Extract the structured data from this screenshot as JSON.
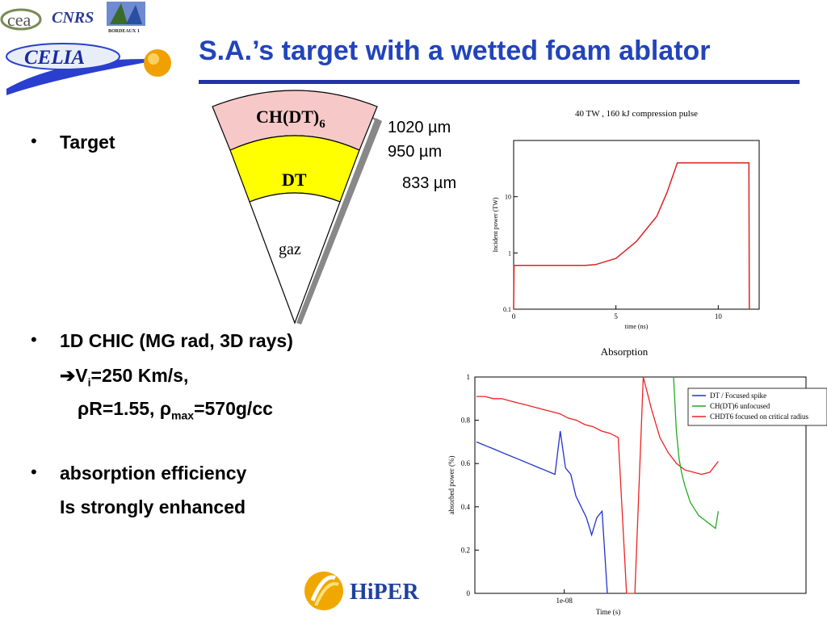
{
  "slide": {
    "title": "S.A.’s target with a wetted foam ablator"
  },
  "logos": {
    "cea": "cea",
    "cnrs": "CNRS",
    "univ": "BORDEAUX 1",
    "celia": "CELIA",
    "hiper": "HiPER"
  },
  "target_diagram": {
    "layer_outer": "CH(DT)",
    "layer_outer_sub": "6",
    "layer_mid": "DT",
    "layer_inner": "gaz",
    "radius_outer": "1020 µm",
    "radius_mid": "950 µm",
    "radius_inner": "833 µm",
    "colors": {
      "outer": "#f7c8c8",
      "mid": "#ffff00",
      "inner": "#ffffff",
      "shadow": "#888888"
    }
  },
  "bullets": {
    "b1": "Target",
    "b2": "1D CHIC (MG rad, 3D rays)",
    "b2_line2_prefix": "V",
    "b2_line2_sub": "i",
    "b2_line2_rest": "=250 Km/s,",
    "b2_line3_a": "ρR=1.55, ρ",
    "b2_line3_sub": "max",
    "b2_line3_b": "=570g/cc",
    "b3_line1": "absorption efficiency",
    "b3_line2": "Is strongly enhanced",
    "bullet_char": "•",
    "arrow_char": "➔"
  },
  "chart_data": [
    {
      "type": "line",
      "title": "40 TW , 160 kJ compression pulse",
      "xlabel": "time (ns)",
      "ylabel": "Incident power (TW)",
      "yscale": "log",
      "xlim": [
        0,
        12
      ],
      "ylim": [
        0.1,
        100
      ],
      "xticks": [
        "0",
        "5",
        "10"
      ],
      "yticks": [
        "0.1",
        "1",
        "10"
      ],
      "series": [
        {
          "color": "#dd2222",
          "x": [
            0,
            0.02,
            3.5,
            4,
            5,
            6,
            7,
            7.5,
            8,
            11.5,
            11.52
          ],
          "y": [
            0.1,
            0.6,
            0.6,
            0.62,
            0.8,
            1.6,
            4.5,
            12,
            40,
            40,
            0.1
          ]
        }
      ]
    },
    {
      "type": "line",
      "title": "Absorption",
      "xlabel": "Time (s)",
      "ylabel": "absorbed power (%)",
      "xtick": "1e-08",
      "ylim": [
        0,
        1
      ],
      "yticks": [
        "0",
        "0.2",
        "0.4",
        "0.6",
        "0.8",
        "1"
      ],
      "legend_position": "top-right",
      "series": [
        {
          "name": "DT / Focused spike",
          "color": "#2233cc",
          "y": [
            0.7,
            0.69,
            0.68,
            0.67,
            0.66,
            0.65,
            0.64,
            0.63,
            0.62,
            0.61,
            0.6,
            0.59,
            0.58,
            0.57,
            0.56,
            0.55,
            0.75,
            0.58,
            0.55,
            0.45,
            0.4,
            0.35,
            0.27,
            0.35,
            0.38,
            0.0
          ]
        },
        {
          "name": "CH(DT)6 unfocused",
          "color": "#22aa22",
          "y": [
            1.0,
            0.75,
            0.62,
            0.55,
            0.5,
            0.46,
            0.42,
            0.4,
            0.38,
            0.36,
            0.35,
            0.34,
            0.33,
            0.32,
            0.31,
            0.3,
            0.38
          ]
        },
        {
          "name": "CHDT6 focused on critical radius",
          "color": "#ee2222",
          "y": [
            0.91,
            0.91,
            0.9,
            0.9,
            0.89,
            0.88,
            0.87,
            0.86,
            0.85,
            0.84,
            0.83,
            0.81,
            0.8,
            0.78,
            0.77,
            0.75,
            0.74,
            0.72,
            0.0,
            0.0,
            1.0,
            0.85,
            0.72,
            0.65,
            0.6,
            0.57,
            0.56,
            0.55,
            0.56,
            0.61
          ]
        }
      ]
    }
  ]
}
